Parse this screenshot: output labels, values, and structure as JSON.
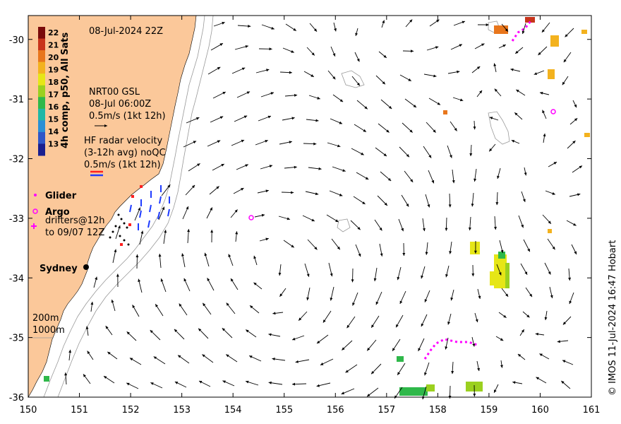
{
  "map": {
    "x_ticks": [
      "150",
      "151",
      "152",
      "153",
      "154",
      "155",
      "156",
      "157",
      "158",
      "159",
      "160",
      "161"
    ],
    "y_ticks": [
      "-30",
      "-31",
      "-32",
      "-33",
      "-34",
      "-35",
      "-36"
    ],
    "lon_range": [
      150,
      161
    ],
    "lat_range": [
      -36,
      -29.6
    ]
  },
  "datetime_label": "08-Jul-2024 22Z",
  "colorbar": {
    "title": "4h comp, p50, All Sats",
    "ticks": [
      "22",
      "21",
      "20",
      "19",
      "18",
      "17",
      "16",
      "15",
      "14",
      "13"
    ],
    "colors": [
      "#7a0a0a",
      "#c8341b",
      "#e8761c",
      "#f3b21e",
      "#e6e617",
      "#9bd01f",
      "#2fb84a",
      "#1fb7a6",
      "#2a8fd6",
      "#2f56c8",
      "#1a1f8f"
    ]
  },
  "legend": {
    "nrt_title": "NRT00 GSL",
    "nrt_time": "08-Jul 06:00Z",
    "nrt_scale": "0.5m/s (1kt 12h)",
    "hf_title": "HF radar velocity",
    "hf_avg": "(3-12h avg) noQC",
    "hf_scale": "0.5m/s (1kt 12h)",
    "glider": "Glider",
    "argo": "Argo",
    "drifters_1": "drifters@12h",
    "drifters_2": "to 09/07 12Z",
    "sydney": "Sydney",
    "depth_200": "200m",
    "depth_1000": "1000m"
  },
  "credit": "© IMOS 11-Jul-2024 16:47 Hobart",
  "colors": {
    "land": "#fbc89a",
    "arrow": "#000000",
    "argo": "#ff00ff",
    "radar_blue": "#1f3cff",
    "radar_red": "#ff1f1f"
  }
}
